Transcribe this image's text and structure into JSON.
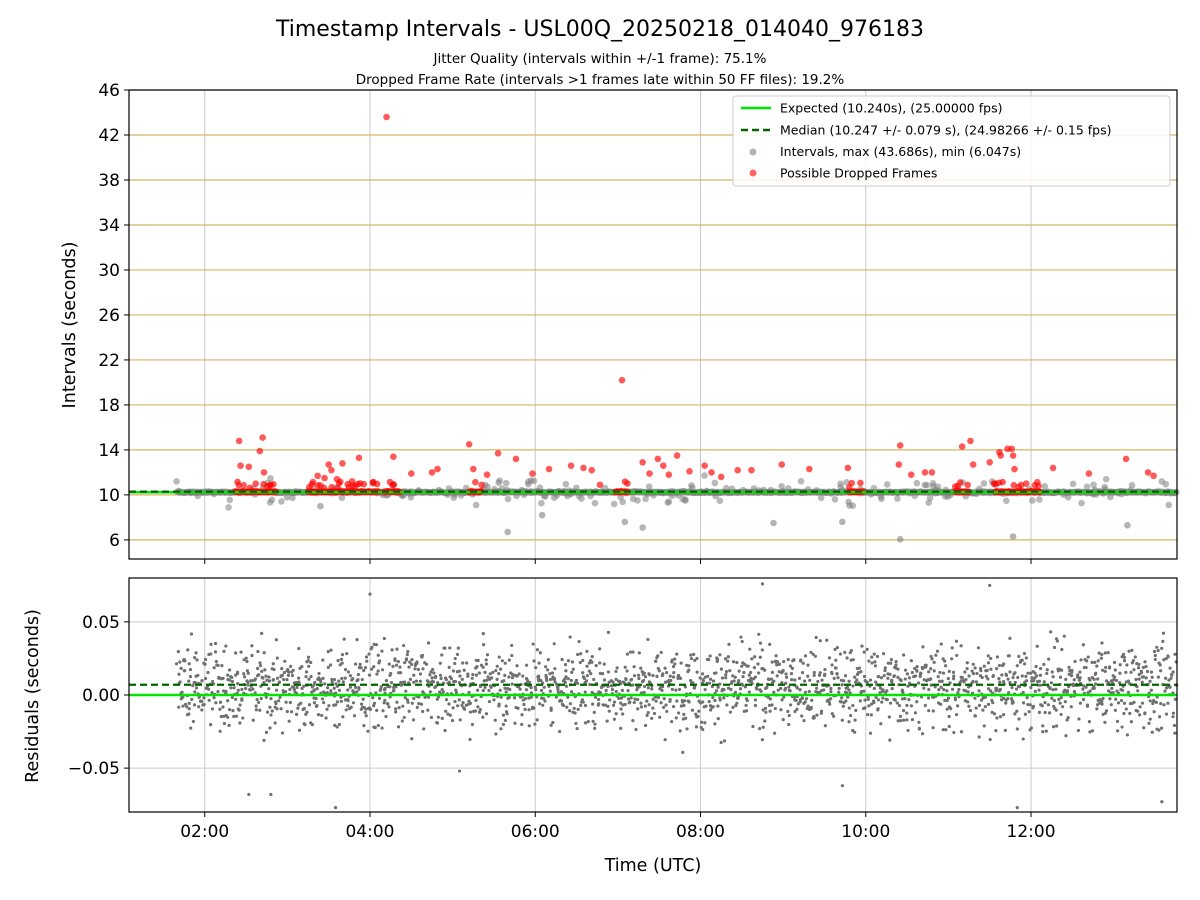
{
  "chart_data": [
    {
      "type": "scatter",
      "title": "Timestamp Intervals - USL00Q_20250218_014040_976183",
      "subtitle_1": "Jitter Quality (intervals within +/-1 frame): 75.1%",
      "subtitle_2": "Dropped Frame Rate (intervals >1 frames late within 50 FF files): 19.2%",
      "ylabel": "Intervals (seconds)",
      "x_range": [
        "01:05",
        "13:46"
      ],
      "ylim": [
        4.3,
        46
      ],
      "yticks": [
        6,
        10,
        14,
        18,
        22,
        26,
        30,
        34,
        38,
        42,
        46
      ],
      "grid": "horizontal gold lines at y ticks, vertical gray lines at x ticks",
      "legend_position": "top-right",
      "legend": {
        "expected": "Expected (10.240s), (25.00000 fps)",
        "median": "Median (10.247 +/- 0.079 s), (24.98266 +/- 0.15 fps)",
        "intervals": "Intervals, max (43.686s), min (6.047s)",
        "dropped": "Possible Dropped Frames"
      },
      "expected_value": 10.24,
      "median_value": 10.247,
      "intervals_max": 43.686,
      "intervals_min": 6.047,
      "colors": {
        "expected": "#00e400",
        "median": "#006400",
        "intervals": "#808080",
        "dropped": "#ff0000",
        "grid_h": "#d6b560",
        "grid_v": "#c8c8c8"
      },
      "dropped_points": [
        [
          "02:25",
          14.8
        ],
        [
          "02:26",
          12.6
        ],
        [
          "02:32",
          12.5
        ],
        [
          "02:40",
          13.9
        ],
        [
          "02:42",
          15.1
        ],
        [
          "02:43",
          12.0
        ],
        [
          "02:37",
          11.0
        ],
        [
          "02:48",
          10.9
        ],
        [
          "03:22",
          11.7
        ],
        [
          "03:27",
          11.5
        ],
        [
          "03:30",
          12.7
        ],
        [
          "03:32",
          12.2
        ],
        [
          "03:36",
          11.4
        ],
        [
          "03:40",
          12.8
        ],
        [
          "03:47",
          11.2
        ],
        [
          "03:52",
          13.3
        ],
        [
          "04:02",
          11.1
        ],
        [
          "04:12",
          43.6
        ],
        [
          "04:17",
          13.4
        ],
        [
          "04:30",
          11.9
        ],
        [
          "04:45",
          12.0
        ],
        [
          "04:49",
          12.3
        ],
        [
          "05:12",
          14.5
        ],
        [
          "05:15",
          12.3
        ],
        [
          "05:25",
          11.8
        ],
        [
          "05:33",
          13.7
        ],
        [
          "05:46",
          13.2
        ],
        [
          "05:58",
          11.9
        ],
        [
          "06:10",
          12.3
        ],
        [
          "06:26",
          12.6
        ],
        [
          "06:35",
          12.4
        ],
        [
          "06:41",
          12.2
        ],
        [
          "06:47",
          10.9
        ],
        [
          "07:03",
          20.2
        ],
        [
          "07:18",
          12.9
        ],
        [
          "07:23",
          11.9
        ],
        [
          "07:29",
          13.2
        ],
        [
          "07:33",
          12.6
        ],
        [
          "07:37",
          11.8
        ],
        [
          "07:43",
          13.5
        ],
        [
          "07:52",
          12.1
        ],
        [
          "08:03",
          12.6
        ],
        [
          "08:08",
          12.0
        ],
        [
          "08:15",
          11.6
        ],
        [
          "08:27",
          12.2
        ],
        [
          "08:37",
          12.2
        ],
        [
          "08:59",
          12.7
        ],
        [
          "09:19",
          12.3
        ],
        [
          "09:47",
          12.4
        ],
        [
          "10:25",
          14.4
        ],
        [
          "10:24",
          12.7
        ],
        [
          "10:33",
          11.8
        ],
        [
          "10:43",
          12.0
        ],
        [
          "10:48",
          12.0
        ],
        [
          "11:10",
          14.3
        ],
        [
          "11:16",
          14.8
        ],
        [
          "11:18",
          12.7
        ],
        [
          "11:30",
          12.9
        ],
        [
          "11:33",
          11.0
        ],
        [
          "11:37",
          13.8
        ],
        [
          "11:38",
          13.5
        ],
        [
          "11:43",
          14.1
        ],
        [
          "11:46",
          14.1
        ],
        [
          "11:47",
          13.5
        ],
        [
          "11:48",
          12.3
        ],
        [
          "12:16",
          12.4
        ],
        [
          "12:42",
          11.9
        ],
        [
          "13:09",
          13.2
        ],
        [
          "13:25",
          12.0
        ],
        [
          "13:29",
          11.7
        ]
      ],
      "dropped_clusters": [
        [
          "02:22",
          "02:52"
        ],
        [
          "03:15",
          "03:57"
        ],
        [
          "03:58",
          "04:07"
        ],
        [
          "04:10",
          "04:22"
        ],
        [
          "05:12",
          "05:21"
        ],
        [
          "06:58",
          "07:07"
        ],
        [
          "09:48",
          "09:58"
        ],
        [
          "11:05",
          "11:15"
        ],
        [
          "11:34",
          "12:07"
        ]
      ]
    },
    {
      "type": "scatter",
      "xlabel": "Time (UTC)",
      "ylabel": "Residuals (seconds)",
      "x_range": [
        "01:05",
        "13:46"
      ],
      "xticks": [
        "02:00",
        "04:00",
        "06:00",
        "08:00",
        "10:00",
        "12:00"
      ],
      "ylim": [
        -0.08,
        0.08
      ],
      "yticks": [
        0.05,
        0.0,
        -0.05
      ],
      "ytick_labels": [
        "0.05",
        "0.00",
        "−0.05"
      ],
      "expected_line": 0.0,
      "median_line": 0.007,
      "grid": "light gray",
      "colors": {
        "points": "#707070",
        "expected": "#00e400",
        "median": "#006400"
      },
      "residual_spread": {
        "start": "01:40",
        "end": "13:46",
        "typical_range": [
          -0.03,
          0.04
        ],
        "outliers": [
          [
            "02:32",
            -0.068
          ],
          [
            "02:48",
            -0.068
          ],
          [
            "03:35",
            -0.077
          ],
          [
            "04:00",
            0.069
          ],
          [
            "05:05",
            -0.052
          ],
          [
            "08:45",
            0.076
          ],
          [
            "09:43",
            -0.062
          ],
          [
            "11:30",
            0.075
          ],
          [
            "11:50",
            -0.077
          ],
          [
            "13:35",
            -0.073
          ]
        ]
      }
    }
  ]
}
